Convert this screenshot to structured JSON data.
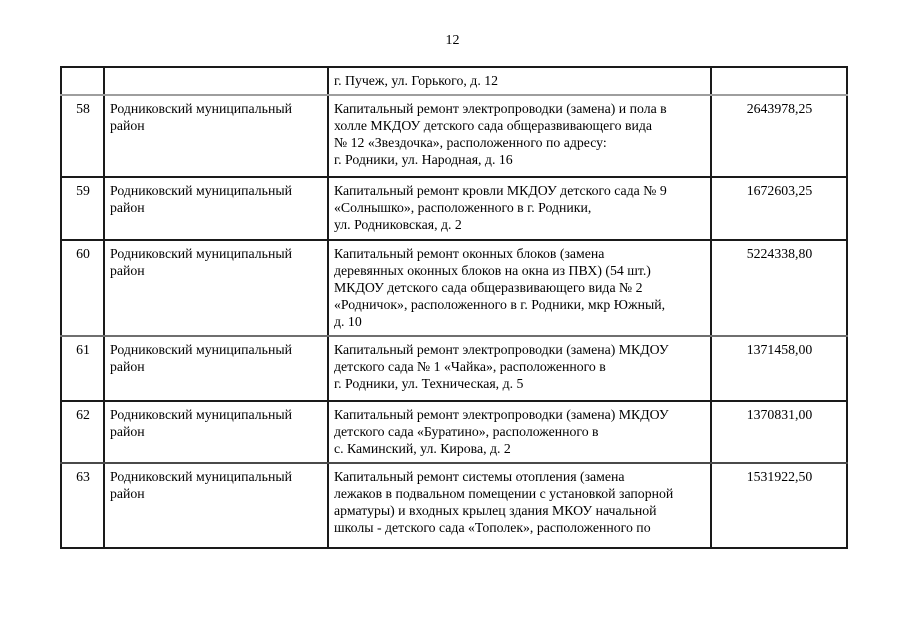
{
  "page": {
    "number": "12"
  },
  "table": {
    "rows": [
      {
        "num": "",
        "district": "",
        "description": "г. Пучеж, ул. Горького, д. 12",
        "amount": ""
      },
      {
        "num": "58",
        "district": "Родниковский муниципальный\nрайон",
        "description": "Капитальный ремонт электропроводки (замена) и пола в\nхолле МКДОУ детского сада общеразвивающего вида\n№ 12 «Звездочка», расположенного по адресу:\nг. Родники, ул. Народная, д. 16",
        "amount": "2643978,25"
      },
      {
        "num": "59",
        "district": "Родниковский муниципальный\nрайон",
        "description": "Капитальный ремонт кровли МКДОУ детского сада № 9\n«Солнышко», расположенного в г. Родники,\nул. Родниковская, д. 2",
        "amount": "1672603,25"
      },
      {
        "num": "60",
        "district": "Родниковский муниципальный\nрайон",
        "description": "Капитальный ремонт оконных блоков (замена\nдеревянных оконных блоков на окна из ПВХ) (54 шт.)\nМКДОУ детского сада общеразвивающего вида № 2\n«Родничок», расположенного в г. Родники, мкр Южный,\nд. 10",
        "amount": "5224338,80"
      },
      {
        "num": "61",
        "district": "Родниковский муниципальный\nрайон",
        "description": "Капитальный ремонт электропроводки (замена) МКДОУ\nдетского сада № 1 «Чайка», расположенного в\nг. Родники, ул. Техническая, д. 5",
        "amount": "1371458,00"
      },
      {
        "num": "62",
        "district": "Родниковский муниципальный\nрайон",
        "description": "Капитальный ремонт электропроводки (замена) МКДОУ\nдетского сада «Буратино», расположенного в\nс. Каминский, ул. Кирова, д. 2",
        "amount": "1370831,00"
      },
      {
        "num": "63",
        "district": "Родниковский муниципальный\nрайон",
        "description": "Капитальный ремонт системы отопления (замена\nлежаков в подвальном помещении с установкой запорной\nарматуры) и входных крылец здания МКОУ начальной\nшколы - детского сада «Тополек», расположенного по",
        "amount": "1531922,50"
      }
    ]
  }
}
